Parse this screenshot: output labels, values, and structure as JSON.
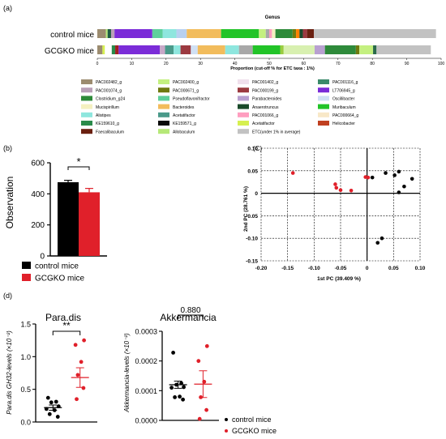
{
  "colors": {
    "black": "#000000",
    "red": "#e0202a",
    "axis": "#000000"
  },
  "panel_a": {
    "label": "(a)",
    "title": "Genus",
    "xlabel": "Proportion (cut-off % for ETC taxa : 1%)",
    "ticks": [
      "0",
      "10",
      "20",
      "30",
      "40",
      "50",
      "60",
      "70",
      "80",
      "90",
      "100"
    ],
    "rows": [
      {
        "name": "control mice",
        "segments": [
          {
            "v": 2.5,
            "c": "#9c8c70"
          },
          {
            "v": 0.5,
            "c": "#b6e878"
          },
          {
            "v": 1,
            "c": "#1e5c42"
          },
          {
            "v": 1,
            "c": "#b9a0b8"
          },
          {
            "v": 11,
            "c": "#7b2cd8"
          },
          {
            "v": 3,
            "c": "#5fcf9c"
          },
          {
            "v": 4,
            "c": "#8ee6de"
          },
          {
            "v": 3,
            "c": "#b8d0f0"
          },
          {
            "v": 10,
            "c": "#f2bc5c"
          },
          {
            "v": 11,
            "c": "#22c428"
          },
          {
            "v": 2,
            "c": "#c4f080"
          },
          {
            "v": 1,
            "c": "#a8a8a8"
          },
          {
            "v": 0.8,
            "c": "#ff9ec0"
          },
          {
            "v": 1,
            "c": "#f4f0c0"
          },
          {
            "v": 5,
            "c": "#2e8a3a"
          },
          {
            "v": 1,
            "c": "#6f7a10"
          },
          {
            "v": 1,
            "c": "#ff8000"
          },
          {
            "v": 1,
            "c": "#1a4a2a"
          },
          {
            "v": 1.2,
            "c": "#9c3a40"
          },
          {
            "v": 2,
            "c": "#6a2010"
          },
          {
            "v": 35.5,
            "c": "#c2c2c2"
          }
        ]
      },
      {
        "name": "GCGKO mice",
        "segments": [
          {
            "v": 1.5,
            "c": "#9c8c70"
          },
          {
            "v": 0.7,
            "c": "#d6f050"
          },
          {
            "v": 2,
            "c": "#ffffff"
          },
          {
            "v": 1,
            "c": "#2a8a4a"
          },
          {
            "v": 1,
            "c": "#a02020"
          },
          {
            "v": 12,
            "c": "#7b2cd8"
          },
          {
            "v": 1.5,
            "c": "#c8a8c8"
          },
          {
            "v": 2.5,
            "c": "#4a9a8a"
          },
          {
            "v": 2,
            "c": "#8ee6de"
          },
          {
            "v": 3,
            "c": "#9c3a40"
          },
          {
            "v": 2,
            "c": "#d0e0f4"
          },
          {
            "v": 8,
            "c": "#f2bc5c"
          },
          {
            "v": 4,
            "c": "#8ee6de"
          },
          {
            "v": 4,
            "c": "#a8a8a8"
          },
          {
            "v": 8,
            "c": "#22c428"
          },
          {
            "v": 1,
            "c": "#9acc40"
          },
          {
            "v": 9,
            "c": "#d8f0b0"
          },
          {
            "v": 3,
            "c": "#b8a0d0"
          },
          {
            "v": 9,
            "c": "#2e8a3a"
          },
          {
            "v": 1,
            "c": "#6f7a10"
          },
          {
            "v": 4,
            "c": "#c4f080"
          },
          {
            "v": 1,
            "c": "#2a6a4a"
          },
          {
            "v": 15.8,
            "c": "#c2c2c2"
          }
        ]
      }
    ],
    "legend": [
      {
        "label": "PAC002482_g",
        "c": "#9c8c70"
      },
      {
        "label": "PAC002400_g",
        "c": "#c4f080"
      },
      {
        "label": "PAC001402_g",
        "c": "#f0e0ec"
      },
      {
        "label": "PAC001116_g",
        "c": "#3a8a6a"
      },
      {
        "label": "PAC001074_g",
        "c": "#b9a0b8"
      },
      {
        "label": "PAC000671_g",
        "c": "#6f7a10"
      },
      {
        "label": "PAC000199_g",
        "c": "#9c3a40"
      },
      {
        "label": "LT706945_g",
        "c": "#7b2cd8"
      },
      {
        "label": "Clostridium_g24",
        "c": "#2e8a3a"
      },
      {
        "label": "Pseudoflavonifractor",
        "c": "#5fcf9c"
      },
      {
        "label": "Parabacteroides",
        "c": "#b8a0d0"
      },
      {
        "label": "Oscillibacter",
        "c": "#d0e0f4"
      },
      {
        "label": "Mucispirillum",
        "c": "#f4f0c0"
      },
      {
        "label": "Bacteroides",
        "c": "#f2bc5c"
      },
      {
        "label": "Anaerotruncus",
        "c": "#1a4a2a"
      },
      {
        "label": "Muribaculum",
        "c": "#22c428"
      },
      {
        "label": "Alistipes",
        "c": "#8ee6de"
      },
      {
        "label": "Acetatifactor",
        "c": "#4a9a8a"
      },
      {
        "label": "PAC001066_g",
        "c": "#ff9ec0"
      },
      {
        "label": "PAC000664_g",
        "c": "#f8e8c8"
      },
      {
        "label": "KE159610_g",
        "c": "#2a8a4a"
      },
      {
        "label": "KE159571_g",
        "c": "#0a0a0a"
      },
      {
        "label": "Acetatifactor",
        "c": "#d6f050"
      },
      {
        "label": "Helicobacter",
        "c": "#c04020"
      },
      {
        "label": "Faecalibaculum",
        "c": "#6a2010"
      },
      {
        "label": "Allobaculum",
        "c": "#b6e878"
      },
      {
        "label": "ETC(under 1% in average)",
        "c": "#c2c2c2"
      }
    ]
  },
  "panel_b": {
    "label": "(b)",
    "ylabel": "Observation",
    "yticks": [
      "0",
      "200",
      "400",
      "600"
    ],
    "ymax": 600,
    "bars": [
      {
        "name": "control mice",
        "value": 475,
        "err": 12,
        "color": "#000000"
      },
      {
        "name": "GCGKO mice",
        "value": 410,
        "err": 25,
        "color": "#e0202a"
      }
    ],
    "sig": "*"
  },
  "panel_c": {
    "label": "(C)",
    "xlabel": "1st PC (39.409 %)",
    "ylabel": "2nd PC (28.761 %)",
    "xticks": [
      "-0.20",
      "-0.15",
      "-0.10",
      "-0.05",
      "0",
      "0.05",
      "0.10"
    ],
    "yticks": [
      "0.10",
      "0.05",
      "0",
      "-0.05",
      "-0.10",
      "-0.15"
    ],
    "xlim": [
      -0.2,
      0.1
    ],
    "ylim": [
      -0.15,
      0.1
    ],
    "control": [
      [
        0.01,
        0.035
      ],
      [
        0.035,
        0.045
      ],
      [
        0.052,
        0.04
      ],
      [
        0.06,
        0.048
      ],
      [
        0.085,
        0.032
      ],
      [
        0.07,
        0.015
      ],
      [
        0.06,
        0.002
      ],
      [
        0.028,
        -0.1
      ],
      [
        0.02,
        -0.11
      ]
    ],
    "gcgko": [
      [
        -0.14,
        0.045
      ],
      [
        -0.06,
        0.02
      ],
      [
        -0.058,
        0.012
      ],
      [
        -0.05,
        0.007
      ],
      [
        -0.03,
        0.006
      ],
      [
        -0.003,
        0.036
      ],
      [
        0.002,
        0.035
      ]
    ]
  },
  "panel_d": {
    "label": "(d)",
    "left": {
      "title": "Para.dis",
      "ylabel": "Para.dis GH32-levels (×10⁻²)",
      "yticks": [
        "0.0",
        "0.5",
        "1.0",
        "1.5"
      ],
      "ymax": 1.5,
      "sig": "**",
      "control": [
        0.37,
        0.31,
        0.3,
        0.24,
        0.2,
        0.18,
        0.12,
        0.08
      ],
      "control_mean": 0.22,
      "control_sem": 0.04,
      "gcgko": [
        1.25,
        1.18,
        0.92,
        0.72,
        0.52,
        0.35
      ],
      "gcgko_mean": 0.68,
      "gcgko_sem": 0.15
    },
    "right": {
      "title": "Akkermancia",
      "ylabel": "Akkermancia-levels (×10⁻²)",
      "yticks": [
        "0.0000",
        "0.0001",
        "0.0002",
        "0.0003"
      ],
      "ymax": 0.0003,
      "sig": "0.880",
      "control": [
        0.000228,
        0.000125,
        0.00012,
        0.000112,
        0.00011,
        8e-05,
        7.8e-05,
        7e-05
      ],
      "control_mean": 0.00012,
      "control_sem": 1.2e-05,
      "gcgko": [
        0.00025,
        0.0002,
        0.00013,
        7.8e-05,
        3.5e-05,
        5e-06
      ],
      "gcgko_mean": 0.000122,
      "gcgko_sem": 4.5e-05
    },
    "legend": [
      {
        "label": "control mice",
        "c": "#000000"
      },
      {
        "label": "GCGKO mice",
        "c": "#e0202a"
      }
    ]
  },
  "legend_b": [
    {
      "label": "control mice",
      "c": "#000000"
    },
    {
      "label": "GCGKO mice",
      "c": "#e0202a"
    }
  ],
  "chart_data": [
    {
      "type": "bar",
      "title": "Genus",
      "xlabel": "Proportion (cut-off % for ETC taxa : 1%)",
      "categories": [
        "control mice",
        "GCGKO mice"
      ],
      "xlim": [
        0,
        100
      ],
      "orientation": "horizontal-stacked"
    },
    {
      "type": "bar",
      "categories": [
        "control mice",
        "GCGKO mice"
      ],
      "values": [
        475,
        410
      ],
      "ylabel": "Observation",
      "ylim": [
        0,
        600
      ]
    },
    {
      "type": "scatter",
      "xlabel": "1st PC (39.409 %)",
      "ylabel": "2nd PC (28.761 %)",
      "xlim": [
        -0.2,
        0.1
      ],
      "ylim": [
        -0.15,
        0.1
      ],
      "series": [
        {
          "name": "control mice"
        },
        {
          "name": "GCGKO mice"
        }
      ]
    },
    {
      "type": "scatter",
      "title": "Para.dis",
      "categories": [
        "control mice",
        "GCGKO mice"
      ],
      "ylim": [
        0,
        1.5
      ]
    },
    {
      "type": "scatter",
      "title": "Akkermancia",
      "categories": [
        "control mice",
        "GCGKO mice"
      ],
      "ylim": [
        0,
        0.0003
      ]
    }
  ]
}
